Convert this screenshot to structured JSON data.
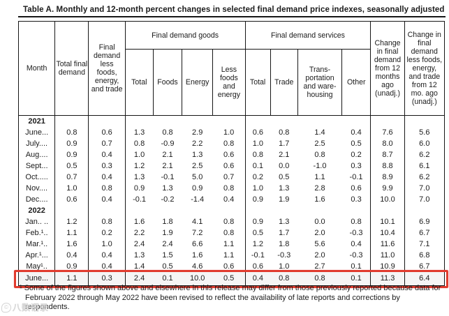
{
  "title": "Table A. Monthly and 12-month percent changes in selected final demand price indexes, seasonally adjusted",
  "table": {
    "headers": {
      "month": "Month",
      "total_final_demand": "Total final demand",
      "fd_less_fet": "Final demand less foods, energy, and trade",
      "goods_group": "Final demand goods",
      "services_group": "Final demand services",
      "goods_cols": [
        "Total",
        "Foods",
        "Energy",
        "Less foods and energy"
      ],
      "services_cols": [
        "Total",
        "Trade",
        "Trans- portation and ware- housing",
        "Other"
      ],
      "chg_12mo": "Change in final demand from 12 months ago (unadj.)",
      "chg_less_12mo": "Change in final demand less foods, energy, and trade from 12 mo. ago (unadj.)"
    },
    "sections": [
      {
        "year": "2021",
        "rows": [
          {
            "month": "June...",
            "values": [
              "0.8",
              "0.6",
              "1.3",
              "0.8",
              "2.9",
              "1.0",
              "0.6",
              "0.8",
              "1.4",
              "0.4",
              "7.6",
              "5.6"
            ]
          },
          {
            "month": "July....",
            "values": [
              "0.9",
              "0.7",
              "0.8",
              "-0.9",
              "2.2",
              "0.8",
              "1.0",
              "1.7",
              "2.5",
              "0.5",
              "8.0",
              "6.0"
            ]
          },
          {
            "month": "Aug....",
            "values": [
              "0.9",
              "0.4",
              "1.0",
              "2.1",
              "1.3",
              "0.6",
              "0.8",
              "2.1",
              "0.8",
              "0.2",
              "8.7",
              "6.2"
            ]
          },
          {
            "month": "Sept...",
            "values": [
              "0.5",
              "0.3",
              "1.2",
              "2.1",
              "2.5",
              "0.6",
              "0.1",
              "0.0",
              "-1.0",
              "0.3",
              "8.8",
              "6.1"
            ]
          },
          {
            "month": "Oct.....",
            "values": [
              "0.7",
              "0.4",
              "1.3",
              "-0.1",
              "5.0",
              "0.7",
              "0.2",
              "0.5",
              "1.1",
              "-0.1",
              "8.9",
              "6.2"
            ]
          },
          {
            "month": "Nov....",
            "values": [
              "1.0",
              "0.8",
              "0.9",
              "1.3",
              "0.9",
              "0.8",
              "1.0",
              "1.3",
              "2.8",
              "0.6",
              "9.9",
              "7.0"
            ]
          },
          {
            "month": "Dec....",
            "values": [
              "0.6",
              "0.4",
              "-0.1",
              "-0.2",
              "-1.4",
              "0.4",
              "0.9",
              "1.9",
              "1.6",
              "0.3",
              "10.0",
              "7.0"
            ]
          }
        ]
      },
      {
        "year": "2022",
        "rows": [
          {
            "month": "Jan.. ..",
            "values": [
              "1.2",
              "0.8",
              "1.6",
              "1.8",
              "4.1",
              "0.8",
              "0.9",
              "1.3",
              "0.0",
              "0.8",
              "10.1",
              "6.9"
            ]
          },
          {
            "month": "Feb.¹..",
            "values": [
              "1.1",
              "0.2",
              "2.2",
              "1.9",
              "7.2",
              "0.8",
              "0.5",
              "1.7",
              "2.0",
              "-0.3",
              "10.4",
              "6.7"
            ]
          },
          {
            "month": "Mar.¹..",
            "values": [
              "1.6",
              "1.0",
              "2.4",
              "2.4",
              "6.6",
              "1.1",
              "1.2",
              "1.8",
              "5.6",
              "0.4",
              "11.6",
              "7.1"
            ]
          },
          {
            "month": "Apr.¹...",
            "values": [
              "0.4",
              "0.4",
              "1.3",
              "1.5",
              "1.6",
              "1.1",
              "-0.1",
              "-0.3",
              "2.0",
              "-0.3",
              "11.0",
              "6.8"
            ]
          },
          {
            "month": "May¹..",
            "values": [
              "0.9",
              "0.4",
              "1.4",
              "0.5",
              "4.6",
              "0.6",
              "0.6",
              "1.0",
              "2.7",
              "0.1",
              "10.9",
              "6.7"
            ]
          },
          {
            "month": "June...",
            "values": [
              "1.1",
              "0.3",
              "2.4",
              "0.1",
              "10.0",
              "0.5",
              "0.4",
              "0.8",
              "0.8",
              "0.1",
              "11.3",
              "6.4"
            ],
            "highlight": true
          }
        ]
      }
    ]
  },
  "footnote": "¹ Some of the figures shown above and elsewhere in this release may differ from those previously reported because data for February 2022 through May 2022 have been revised to reflect the availability of late reports and corrections by respondents.",
  "watermark": {
    "text": "八数语录"
  },
  "colors": {
    "highlight_border": "#e13b2e"
  }
}
